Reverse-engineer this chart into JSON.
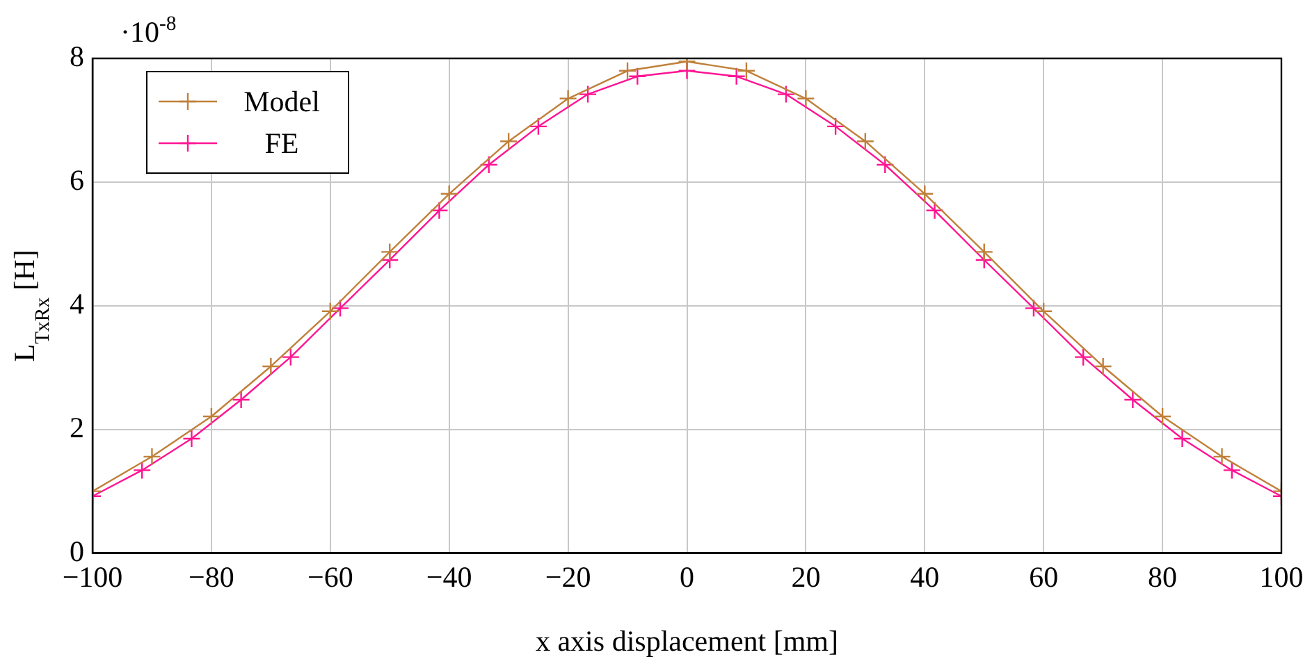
{
  "chart_data": {
    "type": "line",
    "xlabel": "x axis displacement [mm]",
    "ylabel": "L$_{TxRx}$ [H]",
    "annotations": [
      "·10$^{-8}$"
    ],
    "xlim": [
      -100,
      100
    ],
    "xticks": [
      -100,
      -80,
      -60,
      -40,
      -20,
      0,
      20,
      40,
      60,
      80,
      100
    ],
    "ylim": [
      0,
      8
    ],
    "yticks": [
      0,
      2,
      4,
      6,
      8
    ],
    "grid": true,
    "legend": "top left",
    "series": [
      {
        "name": "Model",
        "color": "#c0803a",
        "marker": "cross",
        "x": [
          -100,
          -90,
          -80,
          -70,
          -60,
          -50,
          -40,
          -30,
          -20,
          -10,
          0,
          10,
          20,
          30,
          40,
          50,
          60,
          70,
          80,
          90,
          100
        ],
        "values": [
          1.0,
          1.56,
          2.21,
          3.02,
          3.91,
          4.87,
          5.81,
          6.66,
          7.35,
          7.8,
          7.95,
          7.8,
          7.35,
          6.66,
          5.81,
          4.87,
          3.91,
          3.02,
          2.21,
          1.56,
          1.0
        ]
      },
      {
        "name": "FE",
        "color": "#ff1493",
        "marker": "cross",
        "x": [
          -100,
          -91.67,
          -83.33,
          -75,
          -66.67,
          -58.33,
          -50,
          -41.67,
          -33.33,
          -25,
          -16.67,
          -8.33,
          0,
          8.33,
          16.67,
          25,
          33.33,
          41.67,
          50,
          58.33,
          66.67,
          75,
          83.33,
          91.67,
          100
        ],
        "values": [
          0.92,
          1.34,
          1.85,
          2.48,
          3.17,
          3.96,
          4.74,
          5.54,
          6.28,
          6.9,
          7.42,
          7.71,
          7.8,
          7.71,
          7.42,
          6.9,
          6.28,
          5.54,
          4.74,
          3.96,
          3.17,
          2.48,
          1.85,
          1.34,
          0.92
        ]
      }
    ]
  }
}
